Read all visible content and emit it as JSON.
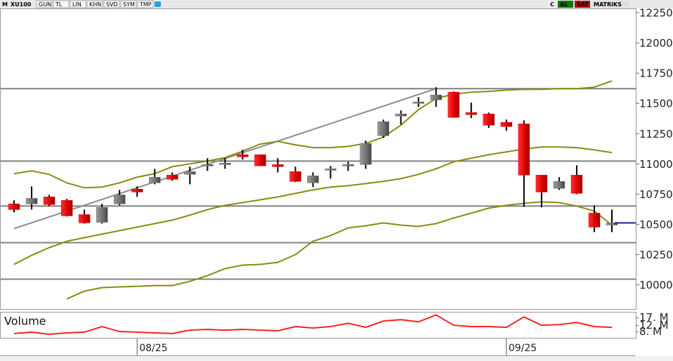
{
  "toolbar": {
    "left": [
      "M",
      "XU100",
      "GUN",
      "TL",
      "LIN",
      "KHN",
      "SVD",
      "SYM",
      "TMP"
    ],
    "right": [
      "C",
      "AL",
      "SAT",
      "MATRiKS"
    ]
  },
  "chart_data": {
    "type": "candlestick",
    "categories": [
      null,
      null,
      null,
      null,
      null,
      null,
      null,
      "08/25",
      null,
      null,
      null,
      null,
      null,
      null,
      null,
      null,
      null,
      null,
      null,
      null,
      null,
      null,
      null,
      null,
      null,
      null,
      null,
      null,
      "09/25",
      null,
      null,
      null,
      null,
      null,
      null
    ],
    "open": [
      10669,
      10669,
      10727,
      10698,
      10581,
      10517,
      10669,
      10791,
      10843,
      10907,
      10913,
      10983,
      10994,
      11076,
      11076,
      10994,
      10936,
      10843,
      10948,
      10983,
      10994,
      11233,
      11395,
      11500,
      11529,
      11593,
      11424,
      11413,
      11343,
      11331,
      10907,
      10797,
      10907,
      10593,
      10494
    ],
    "high": [
      10698,
      10814,
      10744,
      10710,
      10622,
      10669,
      10785,
      10814,
      10959,
      10930,
      10977,
      11047,
      11047,
      11116,
      11076,
      11047,
      10977,
      10930,
      10983,
      11017,
      11192,
      11366,
      11442,
      11552,
      11634,
      11599,
      11506,
      11424,
      11366,
      11360,
      10907,
      10890,
      10988,
      10657,
      10622
    ],
    "low": [
      10599,
      10622,
      10651,
      10565,
      10506,
      10506,
      10657,
      10727,
      10831,
      10860,
      10831,
      10942,
      10959,
      11035,
      10983,
      10930,
      10849,
      10808,
      10878,
      10942,
      10959,
      11215,
      11326,
      11471,
      11471,
      11384,
      11378,
      11297,
      11273,
      10645,
      10640,
      10785,
      10750,
      10436,
      10436
    ],
    "close": [
      10622,
      10715,
      10663,
      10570,
      10512,
      10640,
      10744,
      10767,
      10890,
      10872,
      10936,
      10994,
      11006,
      11058,
      10983,
      10977,
      10855,
      10901,
      10959,
      10994,
      11169,
      11349,
      11413,
      11512,
      11570,
      11384,
      11407,
      11320,
      11308,
      10907,
      10767,
      10855,
      10756,
      10477,
      10512
    ],
    "up_color": "#6e6e6e",
    "down_color": "#e00000",
    "bands": [
      {
        "color": "#8a8a10",
        "values": [
          10919,
          10942,
          10913,
          10843,
          10802,
          10808,
          10843,
          10890,
          10919,
          10977,
          11000,
          11023,
          11052,
          11105,
          11163,
          11186,
          11157,
          11134,
          11134,
          11145,
          11169,
          11221,
          11320,
          11448,
          11541,
          11576,
          11593,
          11599,
          11610,
          11616,
          11616,
          11622,
          11622,
          11634,
          11686
        ]
      },
      {
        "color": "#8a8a10",
        "values": [
          10169,
          10244,
          10308,
          10360,
          10390,
          10419,
          10448,
          10477,
          10506,
          10535,
          10576,
          10622,
          10657,
          10680,
          10703,
          10727,
          10756,
          10785,
          10808,
          10820,
          10837,
          10855,
          10878,
          10913,
          10959,
          11017,
          11047,
          11076,
          11099,
          11122,
          11140,
          11140,
          11134,
          11116,
          11093
        ]
      },
      {
        "color": "#8a8a10",
        "values": [
          null,
          null,
          null,
          9884,
          9948,
          9977,
          9983,
          9988,
          9994,
          9994,
          10029,
          10076,
          10134,
          10163,
          10169,
          10186,
          10250,
          10360,
          10407,
          10471,
          10488,
          10512,
          10494,
          10483,
          10506,
          10552,
          10593,
          10634,
          10657,
          10674,
          10686,
          10680,
          10651,
          10610,
          10494
        ]
      }
    ],
    "hlines": [
      11622,
      11023,
      10651,
      10349,
      10047
    ],
    "trendline": {
      "x": [
        0,
        24
      ],
      "values": [
        10465,
        11622
      ],
      "color": "#8c8c8c"
    },
    "ylim": [
      9800,
      12285
    ],
    "yticks": [
      12250,
      12000,
      11750,
      11500,
      11250,
      11000,
      10750,
      10500,
      10250,
      10000
    ],
    "volume": {
      "label": "Volume",
      "color": "#ff2020",
      "values": [
        6.8,
        7.7,
        6.3,
        7.2,
        7.7,
        11.3,
        8.1,
        7.7,
        7.2,
        6.8,
        9.0,
        9.5,
        9.0,
        9.5,
        9.0,
        8.6,
        11.3,
        10.4,
        11.3,
        13.5,
        10.8,
        14.9,
        15.8,
        14.4,
        18.9,
        12.2,
        11.3,
        11.3,
        10.8,
        17.6,
        12.2,
        12.6,
        14.0,
        11.3,
        10.8
      ],
      "ylim": [
        4,
        20
      ],
      "yticks": [
        {
          "value": 17,
          "label": "17. M"
        },
        {
          "value": 12,
          "label": "12. M"
        },
        {
          "value": 8,
          "label": "8. M"
        }
      ]
    }
  }
}
